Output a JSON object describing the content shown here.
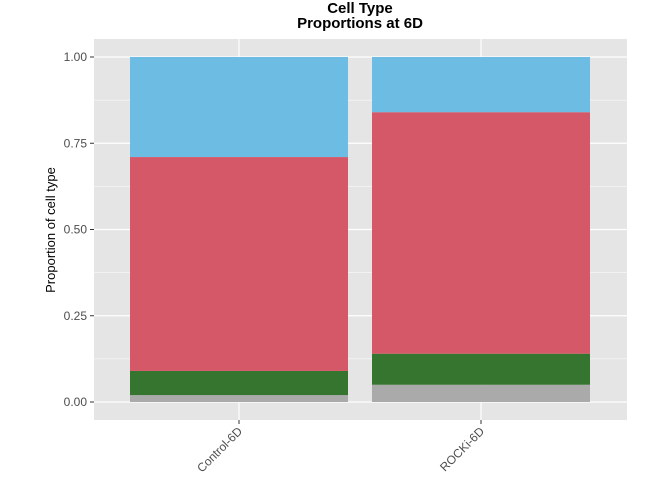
{
  "chart_data": {
    "type": "bar",
    "stacked": true,
    "title": "Cell Type",
    "subtitle": "Proportions at 6D",
    "xlabel": "",
    "ylabel": "Proportion of cell type",
    "ylim": [
      0,
      1
    ],
    "yticks": [
      "0.00",
      "0.25",
      "0.50",
      "0.75",
      "1.00"
    ],
    "ytick_values": [
      0,
      0.25,
      0.5,
      0.75,
      1.0
    ],
    "grid": true,
    "legend": "none",
    "categories": [
      "Control-6D",
      "ROCKi-6D"
    ],
    "series": [
      {
        "color": "#aaaaaa",
        "values": [
          0.02,
          0.05
        ]
      },
      {
        "color": "#35752f",
        "values": [
          0.07,
          0.09
        ]
      },
      {
        "color": "#d45868",
        "values": [
          0.62,
          0.7
        ]
      },
      {
        "color": "#6cbce4",
        "values": [
          0.29,
          0.16
        ]
      }
    ],
    "colors": {
      "panel": "#e5e5e5",
      "gridline": "#ffffff"
    }
  }
}
